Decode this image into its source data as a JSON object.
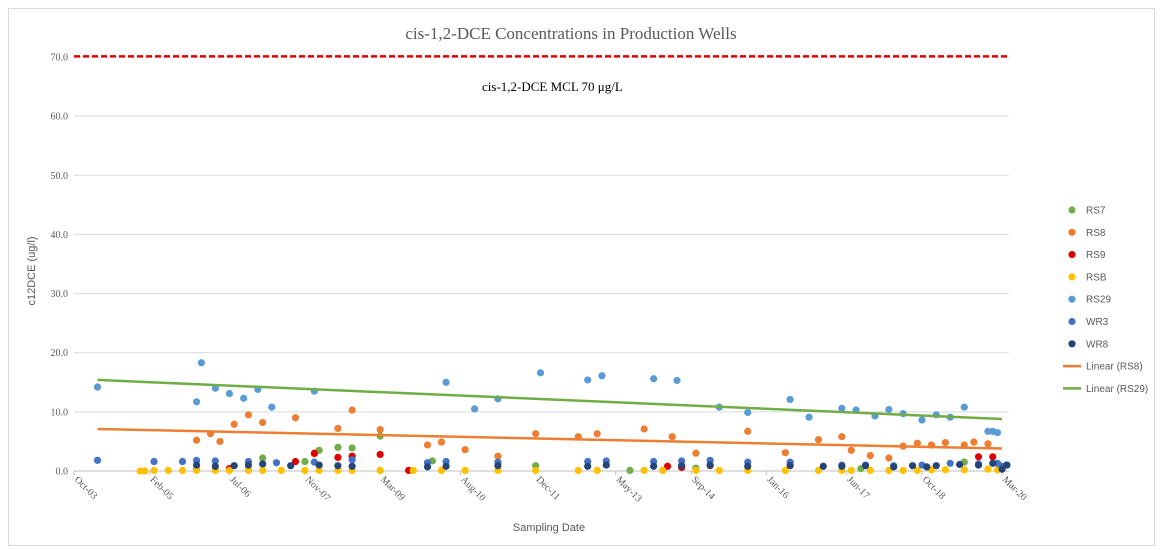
{
  "chart_data": {
    "type": "scatter",
    "title": "cis-1,2-DCE Concentrations in Production Wells",
    "xlabel": "Sampling Date",
    "ylabel": "c12DCE (ug/l)",
    "ylim": [
      0,
      70
    ],
    "yticks": [
      "0.0",
      "10.0",
      "20.0",
      "30.0",
      "40.0",
      "50.0",
      "60.0",
      "70.0"
    ],
    "xlim": [
      "2003-10-01",
      "2020-04-15"
    ],
    "xticks": [
      {
        "date": "2003-10-01",
        "label": "Oct-03"
      },
      {
        "date": "2005-02-01",
        "label": "Feb-05"
      },
      {
        "date": "2006-07-01",
        "label": "Jul-06"
      },
      {
        "date": "2007-11-01",
        "label": "Nov-07"
      },
      {
        "date": "2009-03-01",
        "label": "Mar-09"
      },
      {
        "date": "2010-08-01",
        "label": "Aug-10"
      },
      {
        "date": "2011-12-01",
        "label": "Dec-11"
      },
      {
        "date": "2013-05-01",
        "label": "May-13"
      },
      {
        "date": "2014-09-01",
        "label": "Sep-14"
      },
      {
        "date": "2016-01-01",
        "label": "Jan-16"
      },
      {
        "date": "2017-06-01",
        "label": "Jun-17"
      },
      {
        "date": "2018-10-01",
        "label": "Oct-18"
      },
      {
        "date": "2020-03-01",
        "label": "Mar-20"
      }
    ],
    "grid": "horizontal",
    "legend_position": "right",
    "mcl": {
      "value": 70.1,
      "label": "cis-1,2-DCE MCL 70 μg/L",
      "color": "#e00000"
    },
    "series": [
      {
        "name": "RS7",
        "color": "#70ad47",
        "x": [
          "2005-12-01",
          "2006-04-01",
          "2006-11-01",
          "2007-02-01",
          "2007-11-01",
          "2008-02-01",
          "2008-06-01",
          "2008-09-01",
          "2009-03-01",
          "2010-02-01",
          "2011-12-01",
          "2013-08-01",
          "2014-03-01",
          "2014-10-01",
          "2017-09-01",
          "2019-07-01"
        ],
        "y": [
          0.3,
          0.2,
          0.2,
          2.2,
          1.6,
          3.5,
          4.0,
          3.9,
          5.9,
          1.7,
          0.9,
          0.1,
          0.1,
          0.5,
          0.4,
          1.5
        ]
      },
      {
        "name": "RS8",
        "color": "#ed7d31",
        "x": [
          "2005-12-01",
          "2006-03-01",
          "2006-05-01",
          "2006-08-01",
          "2006-11-01",
          "2007-02-01",
          "2007-09-01",
          "2008-01-01",
          "2008-06-01",
          "2008-09-01",
          "2009-03-01",
          "2010-01-01",
          "2010-04-01",
          "2010-09-01",
          "2011-04-01",
          "2011-12-01",
          "2012-09-01",
          "2013-01-01",
          "2013-11-01",
          "2014-05-01",
          "2014-10-01",
          "2015-09-01",
          "2016-05-01",
          "2016-12-01",
          "2017-05-01",
          "2017-07-01",
          "2017-11-01",
          "2018-03-01",
          "2018-06-01",
          "2018-09-01",
          "2018-12-01",
          "2019-03-01",
          "2019-07-01",
          "2019-09-01",
          "2019-12-01"
        ],
        "y": [
          5.2,
          6.3,
          5.0,
          7.9,
          9.5,
          8.2,
          9.0,
          2.9,
          7.2,
          10.3,
          7.0,
          4.4,
          4.9,
          3.6,
          2.5,
          6.3,
          5.8,
          6.3,
          7.1,
          5.8,
          3.0,
          6.7,
          3.1,
          5.3,
          5.8,
          3.5,
          2.6,
          2.2,
          4.2,
          4.7,
          4.4,
          4.8,
          4.4,
          4.9,
          4.6
        ]
      },
      {
        "name": "RS9",
        "color": "#e00000",
        "x": [
          "2006-07-01",
          "2007-09-01",
          "2008-01-01",
          "2008-06-01",
          "2008-09-01",
          "2009-03-01",
          "2009-09-01",
          "2014-04-01",
          "2014-07-01",
          "2015-01-01",
          "2019-10-01",
          "2020-01-01"
        ],
        "y": [
          0.4,
          1.6,
          3.0,
          2.3,
          2.5,
          2.8,
          0.1,
          0.8,
          0.6,
          0.9,
          2.4,
          2.4
        ]
      },
      {
        "name": "RSB",
        "color": "#ffc000",
        "x": [
          "2004-12-01",
          "2005-01-01",
          "2005-03-01",
          "2005-06-01",
          "2005-09-01",
          "2005-12-01",
          "2006-04-01",
          "2006-07-01",
          "2006-11-01",
          "2007-02-01",
          "2007-06-01",
          "2007-11-01",
          "2008-02-01",
          "2008-06-01",
          "2008-09-01",
          "2009-03-01",
          "2009-10-01",
          "2010-04-01",
          "2010-09-01",
          "2011-04-01",
          "2011-12-01",
          "2012-09-01",
          "2013-01-01",
          "2013-11-01",
          "2014-03-01",
          "2014-10-01",
          "2015-03-01",
          "2015-09-01",
          "2016-05-01",
          "2016-12-01",
          "2017-05-01",
          "2017-07-01",
          "2017-11-01",
          "2018-03-01",
          "2018-06-01",
          "2018-09-01",
          "2018-12-01",
          "2019-03-01",
          "2019-07-01",
          "2019-12-01",
          "2020-02-01"
        ],
        "y": [
          0,
          0,
          0.1,
          0.1,
          0.1,
          0.1,
          0.1,
          0.1,
          0.1,
          0.1,
          0.1,
          0.1,
          0.1,
          0.1,
          0.1,
          0.1,
          0.1,
          0.1,
          0.1,
          0.1,
          0.1,
          0.1,
          0.1,
          0.1,
          0.1,
          0.1,
          0.1,
          0.1,
          0.1,
          0.1,
          0.1,
          0.1,
          0.1,
          0.1,
          0.1,
          0.1,
          0.2,
          0.2,
          0.2,
          0.3,
          0.2
        ]
      },
      {
        "name": "RS29",
        "color": "#5b9bd5",
        "x": [
          "2004-03-01",
          "2005-12-01",
          "2006-01-01",
          "2006-04-01",
          "2006-07-01",
          "2006-10-01",
          "2007-01-01",
          "2007-04-01",
          "2008-01-01",
          "2010-05-01",
          "2010-11-01",
          "2011-04-01",
          "2012-01-01",
          "2012-11-01",
          "2013-02-01",
          "2014-01-01",
          "2014-06-01",
          "2015-03-01",
          "2015-09-01",
          "2016-06-01",
          "2016-10-01",
          "2017-05-01",
          "2017-08-01",
          "2017-12-01",
          "2018-03-01",
          "2018-06-01",
          "2018-10-01",
          "2019-01-01",
          "2019-04-01",
          "2019-07-01",
          "2019-12-01",
          "2020-01-01",
          "2020-02-01"
        ],
        "y": [
          14.2,
          11.7,
          18.3,
          14.0,
          13.1,
          12.3,
          13.8,
          10.8,
          13.5,
          15.0,
          10.5,
          12.2,
          16.6,
          15.4,
          16.1,
          15.6,
          15.3,
          10.8,
          9.9,
          12.1,
          9.1,
          10.6,
          10.3,
          9.3,
          10.4,
          9.7,
          8.6,
          9.5,
          9.1,
          10.8,
          6.7,
          6.7,
          6.5
        ]
      },
      {
        "name": "WR3",
        "color": "#4472c4",
        "x": [
          "2004-03-01",
          "2005-03-01",
          "2005-09-01",
          "2005-12-01",
          "2006-04-01",
          "2006-11-01",
          "2007-05-01",
          "2008-01-01",
          "2008-09-01",
          "2010-01-01",
          "2010-05-01",
          "2011-04-01",
          "2012-11-01",
          "2013-03-01",
          "2014-01-01",
          "2014-07-01",
          "2015-01-01",
          "2015-09-01",
          "2016-06-01",
          "2017-05-01",
          "2017-10-01",
          "2018-04-01",
          "2018-10-01",
          "2019-04-01",
          "2019-10-01",
          "2020-02-01",
          "2020-03-01",
          "2020-04-01"
        ],
        "y": [
          1.8,
          1.6,
          1.6,
          1.8,
          1.7,
          1.6,
          1.4,
          1.5,
          1.9,
          1.4,
          1.6,
          1.5,
          1.6,
          1.7,
          1.6,
          1.7,
          1.8,
          1.5,
          1.5,
          1.0,
          1.0,
          0.9,
          1.0,
          1.3,
          1.2,
          1.3,
          0.8,
          1.0
        ]
      },
      {
        "name": "WR8",
        "color": "#264478",
        "x": [
          "2005-12-01",
          "2006-04-01",
          "2006-08-01",
          "2006-11-01",
          "2007-02-01",
          "2007-08-01",
          "2008-02-01",
          "2008-06-01",
          "2008-09-01",
          "2010-01-01",
          "2010-05-01",
          "2011-04-01",
          "2012-11-01",
          "2013-03-01",
          "2014-01-01",
          "2014-07-01",
          "2015-01-01",
          "2015-09-01",
          "2016-06-01",
          "2017-01-01",
          "2017-05-01",
          "2017-10-01",
          "2018-04-01",
          "2018-08-01",
          "2018-11-01",
          "2019-01-01",
          "2019-06-01",
          "2019-10-01",
          "2020-01-01",
          "2020-03-01",
          "2020-04-01"
        ],
        "y": [
          1.0,
          0.8,
          0.9,
          1.0,
          1.2,
          0.9,
          1.0,
          0.9,
          0.8,
          0.7,
          0.8,
          0.9,
          0.8,
          1.0,
          0.8,
          0.9,
          1.0,
          0.8,
          0.9,
          0.8,
          0.8,
          0.9,
          0.7,
          0.9,
          0.7,
          0.9,
          1.1,
          1.0,
          1.3,
          0.3,
          1.0
        ]
      }
    ],
    "trendlines": [
      {
        "name": "Linear (RS8)",
        "color": "#ed7d31",
        "start": {
          "date": "2004-03-01",
          "value": 7.1
        },
        "end": {
          "date": "2020-03-01",
          "value": 3.8
        }
      },
      {
        "name": "Linear (RS29)",
        "color": "#70ad47",
        "start": {
          "date": "2004-03-01",
          "value": 15.4
        },
        "end": {
          "date": "2020-03-01",
          "value": 8.8
        }
      }
    ]
  }
}
